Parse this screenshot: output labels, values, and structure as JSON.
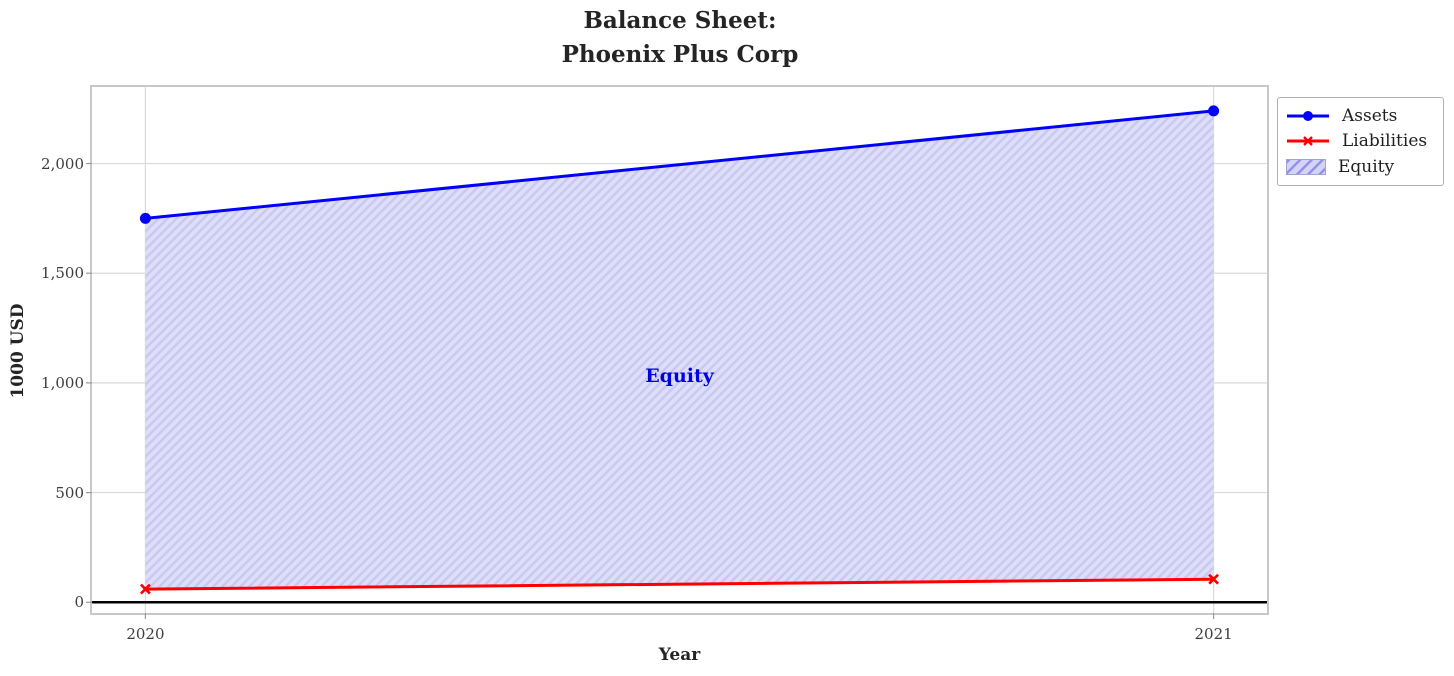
{
  "title": "Balance Sheet:\nPhoenix Plus Corp",
  "chart_data": {
    "type": "line",
    "x": [
      2020,
      2021
    ],
    "series": [
      {
        "name": "Assets",
        "values": [
          1750,
          2240
        ],
        "color": "#0000ff",
        "marker": "circle"
      },
      {
        "name": "Liabilities",
        "values": [
          60,
          105
        ],
        "color": "#ff0000",
        "marker": "x"
      }
    ],
    "area": {
      "name": "Equity",
      "between": [
        "Assets",
        "Liabilities"
      ],
      "fill": "#dedef8",
      "hatch": "/",
      "hatch_color": "#c9c8f1"
    },
    "annotation": {
      "text": "Equity",
      "x": 2020.5,
      "y": 1030,
      "color": "#0000e6"
    },
    "title": "Balance Sheet:\nPhoenix Plus Corp",
    "xlabel": "Year",
    "ylabel": "1000 USD",
    "xlim": [
      2019.95,
      2021.05
    ],
    "ylim": [
      -49,
      2349
    ],
    "xticks": {
      "values": [
        2020,
        2021
      ],
      "labels": [
        "2020",
        "2021"
      ]
    },
    "yticks": {
      "values": [
        0,
        500,
        1000,
        1500,
        2000
      ],
      "labels": [
        "0",
        "500",
        "1,000",
        "1,500",
        "2,000"
      ]
    },
    "zero_line": {
      "value": 0,
      "color": "#000000"
    },
    "grid": true,
    "grid_color": "#dadada",
    "tick_color": "#999999",
    "legend_position": "top-right-outside"
  }
}
